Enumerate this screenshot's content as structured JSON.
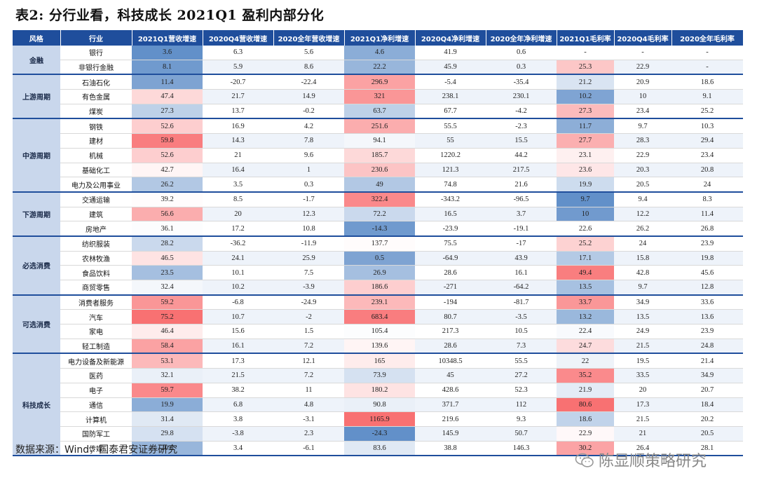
{
  "title": "表2: 分行业看，科技成长 2021Q1 盈利内部分化",
  "headers": [
    "风格",
    "行业",
    "2021Q1营收增速",
    "2020Q4营收增速",
    "2020全年营收增速",
    "2021Q1净利增速",
    "2020Q4净利增速",
    "2020全年净利增速",
    "2021Q1毛利率",
    "2020Q4毛利率",
    "2020全年毛利率"
  ],
  "groups": [
    {
      "style": "金融",
      "rows": [
        {
          "industry": "银行",
          "v": [
            "3.6",
            "6.3",
            "5.6",
            "4.6",
            "41.9",
            "0.6",
            "-",
            "-",
            "-"
          ]
        },
        {
          "industry": "非银行金融",
          "v": [
            "8.1",
            "5.9",
            "8.6",
            "22.2",
            "45.9",
            "0.3",
            "25.3",
            "22.9",
            "-"
          ]
        }
      ]
    },
    {
      "style": "上游周期",
      "rows": [
        {
          "industry": "石油石化",
          "v": [
            "11.4",
            "-20.7",
            "-22.4",
            "296.9",
            "-5.4",
            "-35.4",
            "21.2",
            "20.9",
            "18.6"
          ]
        },
        {
          "industry": "有色金属",
          "v": [
            "47.4",
            "21.7",
            "14.9",
            "321",
            "238.1",
            "230.1",
            "10.2",
            "10",
            "9.1"
          ]
        },
        {
          "industry": "煤炭",
          "v": [
            "27.3",
            "13.7",
            "-0.2",
            "63.7",
            "67.7",
            "-4.2",
            "27.3",
            "23.4",
            "25.2"
          ]
        }
      ]
    },
    {
      "style": "中游周期",
      "rows": [
        {
          "industry": "钢铁",
          "v": [
            "52.6",
            "16.9",
            "4.2",
            "251.6",
            "55.5",
            "-2.3",
            "11.7",
            "9.7",
            "10.3"
          ]
        },
        {
          "industry": "建材",
          "v": [
            "59.8",
            "14.3",
            "7.8",
            "94.1",
            "55",
            "15.5",
            "27.7",
            "28.3",
            "29.4"
          ]
        },
        {
          "industry": "机械",
          "v": [
            "52.6",
            "21",
            "9.6",
            "185.7",
            "1220.2",
            "44.2",
            "23.1",
            "22.9",
            "23.4"
          ]
        },
        {
          "industry": "基础化工",
          "v": [
            "42.7",
            "16.4",
            "1",
            "230.6",
            "121.3",
            "217.5",
            "23.6",
            "20.3",
            "20.8"
          ]
        },
        {
          "industry": "电力及公用事业",
          "v": [
            "26.2",
            "3.5",
            "0.3",
            "49",
            "74.8",
            "21.6",
            "19.9",
            "20.5",
            "24"
          ]
        }
      ]
    },
    {
      "style": "下游周期",
      "rows": [
        {
          "industry": "交通运输",
          "v": [
            "39.2",
            "8.5",
            "-1.7",
            "322.4",
            "-343.2",
            "-96.5",
            "9.7",
            "9.4",
            "8.3"
          ]
        },
        {
          "industry": "建筑",
          "v": [
            "56.6",
            "20",
            "12.3",
            "72.2",
            "16.5",
            "3.7",
            "10",
            "12.2",
            "11.4"
          ]
        },
        {
          "industry": "房地产",
          "v": [
            "36.1",
            "17.2",
            "10.8",
            "-14.3",
            "-23.9",
            "-19.1",
            "22.6",
            "26.2",
            "26.8"
          ]
        }
      ]
    },
    {
      "style": "必选消费",
      "rows": [
        {
          "industry": "纺织服装",
          "v": [
            "28.2",
            "-36.2",
            "-11.9",
            "137.7",
            "75.5",
            "-17",
            "25.2",
            "24",
            "23.9"
          ]
        },
        {
          "industry": "农林牧渔",
          "v": [
            "46.5",
            "24.1",
            "25.9",
            "0.5",
            "-64.9",
            "43.9",
            "17.1",
            "15.8",
            "19.8"
          ]
        },
        {
          "industry": "食品饮料",
          "v": [
            "23.5",
            "10.1",
            "7.5",
            "26.9",
            "28.6",
            "16.1",
            "49.4",
            "42.8",
            "45.6"
          ]
        },
        {
          "industry": "商贸零售",
          "v": [
            "32.4",
            "10.2",
            "-3.9",
            "186.6",
            "-271",
            "-64.2",
            "13.5",
            "9.7",
            "12.8"
          ]
        }
      ]
    },
    {
      "style": "可选消费",
      "rows": [
        {
          "industry": "消费者服务",
          "v": [
            "59.2",
            "-6.8",
            "-24.9",
            "239.1",
            "-194",
            "-81.7",
            "33.7",
            "34.9",
            "33.6"
          ]
        },
        {
          "industry": "汽车",
          "v": [
            "75.2",
            "10.7",
            "-2",
            "683.4",
            "80.7",
            "-3.5",
            "13.2",
            "13.5",
            "13.6"
          ]
        },
        {
          "industry": "家电",
          "v": [
            "46.4",
            "15.6",
            "1.5",
            "105.4",
            "217.3",
            "10.5",
            "22.4",
            "24.9",
            "23.9"
          ]
        },
        {
          "industry": "轻工制造",
          "v": [
            "58.4",
            "16.1",
            "7.2",
            "139.6",
            "28.6",
            "7.3",
            "24.7",
            "21.5",
            "24.8"
          ]
        }
      ]
    },
    {
      "style": "科技成长",
      "rows": [
        {
          "industry": "电力设备及新能源",
          "v": [
            "53.1",
            "17.3",
            "12.1",
            "165",
            "10348.5",
            "55.5",
            "22",
            "19.5",
            "21.4"
          ]
        },
        {
          "industry": "医药",
          "v": [
            "32.1",
            "21.5",
            "7.2",
            "73.9",
            "45",
            "27.2",
            "35.2",
            "33.5",
            "34.9"
          ]
        },
        {
          "industry": "电子",
          "v": [
            "59.7",
            "38.2",
            "11",
            "180.2",
            "428.6",
            "52.3",
            "21.9",
            "20",
            "20.7"
          ]
        },
        {
          "industry": "通信",
          "v": [
            "19.9",
            "6.8",
            "4.8",
            "90.8",
            "371.7",
            "112",
            "80.6",
            "17.3",
            "18.4"
          ]
        },
        {
          "industry": "计算机",
          "v": [
            "31.4",
            "3.8",
            "-3.1",
            "1165.9",
            "219.6",
            "9.3",
            "18.6",
            "21.5",
            "20.2"
          ]
        },
        {
          "industry": "国防军工",
          "v": [
            "29.8",
            "-3.8",
            "2.3",
            "-24.3",
            "145.9",
            "50.7",
            "22.9",
            "21",
            "20.5"
          ]
        },
        {
          "industry": "传媒",
          "v": [
            "20.8",
            "3.4",
            "-6.1",
            "83.6",
            "38.8",
            "146.3",
            "30.2",
            "26.4",
            "28.1"
          ]
        }
      ]
    }
  ],
  "footer": "数据来源：Wind，国泰君安证券研究",
  "watermark": "陈显顺策略研究",
  "colors": {
    "header_bg": "#1F4E9C",
    "style_bg": "#C9D7EC",
    "high": "#F8696B",
    "low": "#5A8AC6"
  },
  "icons": {
    "watermark": "wechat-icon"
  }
}
